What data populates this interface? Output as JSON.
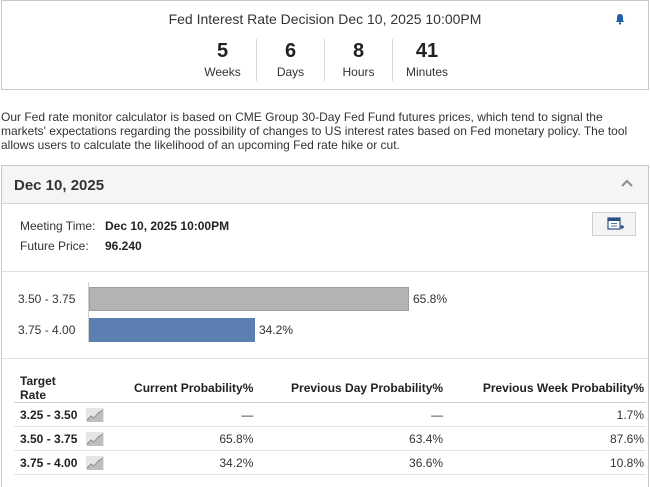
{
  "countdown": {
    "title": "Fed Interest Rate Decision Dec 10, 2025 10:00PM",
    "units": [
      {
        "value": "5",
        "label": "Weeks"
      },
      {
        "value": "6",
        "label": "Days"
      },
      {
        "value": "8",
        "label": "Hours"
      },
      {
        "value": "41",
        "label": "Minutes"
      }
    ]
  },
  "description": "Our Fed rate monitor calculator is based on CME Group 30-Day Fed Fund futures prices, which tend to signal the markets' expectations regarding the possibility of changes to US interest rates based on Fed monetary policy. The tool allows users to calculate the likelihood of an upcoming Fed rate hike or cut.",
  "panel": {
    "title": "Dec 10, 2025",
    "meeting_time_label": "Meeting Time:",
    "meeting_time_value": "Dec 10, 2025 10:00PM",
    "future_price_label": "Future Price:",
    "future_price_value": "96.240"
  },
  "bars": [
    {
      "label": "3.50 - 3.75",
      "value": 65.8,
      "display": "65.8%",
      "color": "#b3b3b3"
    },
    {
      "label": "3.75 - 4.00",
      "value": 34.2,
      "display": "34.2%",
      "color": "#5b7fb0"
    }
  ],
  "table": {
    "headers": [
      "Target Rate",
      "Current Probability%",
      "Previous Day Probability%",
      "Previous Week Probability%"
    ],
    "rows": [
      {
        "rate": "3.25 - 3.50",
        "current": "—",
        "prev_day": "—",
        "prev_week": "1.7%"
      },
      {
        "rate": "3.50 - 3.75",
        "current": "65.8%",
        "prev_day": "63.4%",
        "prev_week": "87.6%"
      },
      {
        "rate": "3.75 - 4.00",
        "current": "34.2%",
        "prev_day": "36.6%",
        "prev_week": "10.8%"
      }
    ]
  },
  "colors": {
    "accent": "#1f5fa8",
    "bar_gray": "#b3b3b3",
    "bar_blue": "#5b7fb0"
  },
  "icons": {
    "bell": "bell-icon",
    "collapse": "chevron-up-icon",
    "calendar": "calendar-add-icon",
    "chart": "line-chart-icon"
  }
}
